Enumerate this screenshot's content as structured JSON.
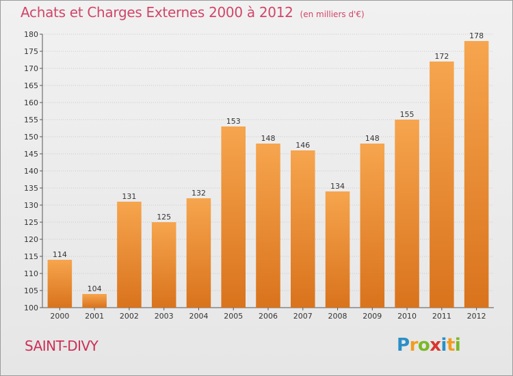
{
  "title": "Achats et Charges Externes 2000 à 2012",
  "unit": "(en milliers d'€)",
  "commune": "SAINT-DIVY",
  "logo": {
    "letters": [
      "P",
      "r",
      "o",
      "x",
      "i",
      "t",
      "i"
    ],
    "colors": [
      "#2a8fc7",
      "#f29d1f",
      "#7bb827",
      "#d9362e",
      "#2a8fc7",
      "#f29d1f",
      "#7bb827"
    ]
  },
  "colors": {
    "title": "#d04568",
    "bar_top": "#f6a54e",
    "bar_bottom": "#d9731c",
    "axis": "#555555",
    "grid": "#c8c8c8"
  },
  "chart_data": {
    "type": "bar",
    "categories": [
      "2000",
      "2001",
      "2002",
      "2003",
      "2004",
      "2005",
      "2006",
      "2007",
      "2008",
      "2009",
      "2010",
      "2011",
      "2012"
    ],
    "values": [
      114,
      104,
      131,
      125,
      132,
      153,
      148,
      146,
      134,
      148,
      155,
      172,
      178
    ],
    "ylim": [
      100,
      180
    ],
    "yticks": [
      100,
      105,
      110,
      115,
      120,
      125,
      130,
      135,
      140,
      145,
      150,
      155,
      160,
      165,
      170,
      175,
      180
    ],
    "grid": true,
    "data_labels": true
  }
}
